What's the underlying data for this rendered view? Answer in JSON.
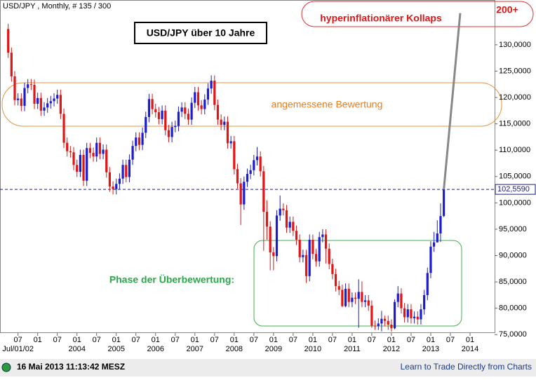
{
  "chart_data": {
    "type": "candlestick",
    "header": "USD/JPY , Monthly, # 135 / 300",
    "title": "USD/JPY über 10 Jahre",
    "annotations": {
      "collapse": "hyperinflationärer Kollaps",
      "target": "200+",
      "fair": "angemessene Bewertung",
      "overvalued": "Phase der Überbewertung:"
    },
    "footer": {
      "timestamp": "16 Mai 2013 11:13:42 MESZ",
      "link": "Learn to Trade Directly from Charts"
    },
    "up_color": "#1c1cd0",
    "down_color": "#e01515",
    "open": [
      133.0,
      128.5,
      124.0,
      119.5,
      119.8,
      118.4,
      121.8,
      122.5,
      122.4,
      118.8,
      119.9,
      117.5,
      118.1,
      118.9,
      119.3,
      119.8,
      120.5,
      116.9,
      111.4,
      109.8,
      109.6,
      107.2,
      105.9,
      109.1,
      104.2,
      110.4,
      109.5,
      108.8,
      111.4,
      109.3,
      110.1,
      105.8,
      103.1,
      102.6,
      103.6,
      104.6,
      107.2,
      104.9,
      108.2,
      110.8,
      112.4,
      111.0,
      113.3,
      116.3,
      119.7,
      117.8,
      117.2,
      115.9,
      117.5,
      113.8,
      112.5,
      114.4,
      114.6,
      117.3,
      118.1,
      116.9,
      115.8,
      119.0,
      121.0,
      118.5,
      117.8,
      119.6,
      121.7,
      123.2,
      118.6,
      115.8,
      114.8,
      115.4,
      111.3,
      111.7,
      106.4,
      103.7,
      99.7,
      104.0,
      105.5,
      106.2,
      108.1,
      108.8,
      106.0,
      98.3,
      95.5,
      90.6,
      89.9,
      97.6,
      98.9,
      98.6,
      95.3,
      96.4,
      94.7,
      93.0,
      89.7,
      90.1,
      86.1,
      93.0,
      90.3,
      88.9,
      93.5,
      94.0,
      91.3,
      88.4,
      86.5,
      84.2,
      83.5,
      80.4,
      83.7,
      81.2,
      82.0,
      81.8,
      83.1,
      81.2,
      81.5,
      80.5,
      76.7,
      76.6,
      77.1,
      78.0,
      77.6,
      76.9,
      76.2,
      81.2,
      82.8,
      80.0,
      78.3,
      79.8,
      78.1,
      78.4,
      77.9,
      79.8,
      82.5,
      86.7,
      91.7,
      92.5,
      94.2,
      97.5
    ],
    "high": [
      134.0,
      129.5,
      125.0,
      120.8,
      120.8,
      122.8,
      123.5,
      123.5,
      123.4,
      120.9,
      120.9,
      119.1,
      119.9,
      120.3,
      120.8,
      121.5,
      121.5,
      117.9,
      112.4,
      110.8,
      110.6,
      108.2,
      110.1,
      110.1,
      111.4,
      111.4,
      110.5,
      112.4,
      112.4,
      111.1,
      111.1,
      106.8,
      104.1,
      104.6,
      105.6,
      108.2,
      108.2,
      109.2,
      111.8,
      113.4,
      113.4,
      114.3,
      117.3,
      120.7,
      120.7,
      118.8,
      118.2,
      118.5,
      118.5,
      114.8,
      115.4,
      115.6,
      118.3,
      119.1,
      119.1,
      117.9,
      120.0,
      122.0,
      122.0,
      119.5,
      120.6,
      122.7,
      124.2,
      124.2,
      119.6,
      116.8,
      116.4,
      116.4,
      112.7,
      112.7,
      107.4,
      104.7,
      105.0,
      106.5,
      107.2,
      109.1,
      110.6,
      109.8,
      107.0,
      100.5,
      96.5,
      91.6,
      98.6,
      101.4,
      99.9,
      99.6,
      97.4,
      97.4,
      95.7,
      94.0,
      91.1,
      91.1,
      94.0,
      94.0,
      91.3,
      94.5,
      95.0,
      95.0,
      92.3,
      89.4,
      87.5,
      85.2,
      84.5,
      84.7,
      84.7,
      83.0,
      83.0,
      85.5,
      85.1,
      82.5,
      82.5,
      81.5,
      77.7,
      78.1,
      79.5,
      78.6,
      78.6,
      77.9,
      81.7,
      84.2,
      83.8,
      81.0,
      80.8,
      80.8,
      79.4,
      79.4,
      80.8,
      83.5,
      87.7,
      92.7,
      94.5,
      96.7,
      99.9,
      103.7
    ],
    "low": [
      127.5,
      123.0,
      118.5,
      118.5,
      117.4,
      117.4,
      120.8,
      121.4,
      117.8,
      117.8,
      116.5,
      116.5,
      117.1,
      117.9,
      118.3,
      118.8,
      115.9,
      110.4,
      108.8,
      108.6,
      106.2,
      104.9,
      104.9,
      103.2,
      103.2,
      108.5,
      107.8,
      107.8,
      108.3,
      108.3,
      104.8,
      102.1,
      101.6,
      101.6,
      102.6,
      103.6,
      103.9,
      103.9,
      107.2,
      109.8,
      110.0,
      110.0,
      112.3,
      115.3,
      116.8,
      116.2,
      114.9,
      114.9,
      112.8,
      111.5,
      111.5,
      113.4,
      113.6,
      116.3,
      115.9,
      114.8,
      114.8,
      118.0,
      117.5,
      116.8,
      116.8,
      118.6,
      120.7,
      117.6,
      114.8,
      113.8,
      113.8,
      110.3,
      110.3,
      105.4,
      102.7,
      95.8,
      98.7,
      103.0,
      104.5,
      105.2,
      107.1,
      105.0,
      90.9,
      93.0,
      87.2,
      87.2,
      88.9,
      96.6,
      97.6,
      94.3,
      94.3,
      93.7,
      92.0,
      88.7,
      88.7,
      84.8,
      85.1,
      89.3,
      87.9,
      87.9,
      92.5,
      88.5,
      87.4,
      85.5,
      83.2,
      82.5,
      80.2,
      80.2,
      80.2,
      80.2,
      80.8,
      76.3,
      80.2,
      80.2,
      79.5,
      76.3,
      75.9,
      75.9,
      75.6,
      76.6,
      75.9,
      75.6,
      76.0,
      80.2,
      79.0,
      77.3,
      77.3,
      77.1,
      77.1,
      76.9,
      76.9,
      78.8,
      81.5,
      85.7,
      90.7,
      92.5,
      92.6,
      97.3
    ],
    "close": [
      128.5,
      124.0,
      119.5,
      119.8,
      118.4,
      121.8,
      122.5,
      122.4,
      118.8,
      119.9,
      117.5,
      118.1,
      118.9,
      119.3,
      119.8,
      120.5,
      116.9,
      111.4,
      109.8,
      109.6,
      107.2,
      105.9,
      109.1,
      104.2,
      110.4,
      109.5,
      108.8,
      111.4,
      109.3,
      110.1,
      105.8,
      103.1,
      102.6,
      103.6,
      104.6,
      107.2,
      104.9,
      108.2,
      110.8,
      112.4,
      111.0,
      113.3,
      116.3,
      119.7,
      117.8,
      117.2,
      115.9,
      117.5,
      113.8,
      112.5,
      114.4,
      114.6,
      117.3,
      118.1,
      116.9,
      115.8,
      119.0,
      121.0,
      118.5,
      117.8,
      119.6,
      121.7,
      123.2,
      118.6,
      115.8,
      114.8,
      115.4,
      111.3,
      111.7,
      106.4,
      103.7,
      99.7,
      104.0,
      105.5,
      106.2,
      108.1,
      108.8,
      106.0,
      98.3,
      95.5,
      90.6,
      89.9,
      97.6,
      98.9,
      98.6,
      95.3,
      96.4,
      94.7,
      93.0,
      89.7,
      90.1,
      86.1,
      93.0,
      90.3,
      88.9,
      93.5,
      94.0,
      91.3,
      88.4,
      86.5,
      84.2,
      83.5,
      80.4,
      83.7,
      81.2,
      82.0,
      81.8,
      83.1,
      81.2,
      81.5,
      80.5,
      76.7,
      76.6,
      77.1,
      78.0,
      77.6,
      76.9,
      76.2,
      81.2,
      82.8,
      80.0,
      78.3,
      79.8,
      78.1,
      78.4,
      77.9,
      79.8,
      82.5,
      86.7,
      91.7,
      92.5,
      94.2,
      97.5,
      102.6
    ],
    "current": {
      "value": 102.559,
      "label": "102,5590"
    },
    "projection": {
      "x": [
        133,
        138
      ],
      "values": [
        102.559,
        136
      ]
    },
    "xlim": [
      -2.5,
      148.5
    ],
    "ylim": [
      75.3,
      138.5
    ],
    "yticks": [
      {
        "value": 75,
        "label": "75,0000"
      },
      {
        "value": 80,
        "label": "80,0000"
      },
      {
        "value": 85,
        "label": "85,0000"
      },
      {
        "value": 90,
        "label": "90,0000"
      },
      {
        "value": 95,
        "label": "95,0000"
      },
      {
        "value": 100,
        "label": "100,0000"
      },
      {
        "value": 105,
        "label": "105,0000"
      },
      {
        "value": 110,
        "label": "110,0000"
      },
      {
        "value": 115,
        "label": "115,0000"
      },
      {
        "value": 120,
        "label": "120,0000"
      },
      {
        "value": 125,
        "label": "125,0000"
      },
      {
        "value": 130,
        "label": "130,0000"
      }
    ],
    "xticks": [
      {
        "value": 3,
        "label": "07"
      },
      {
        "value": 9,
        "label": "01"
      },
      {
        "value": 15,
        "label": "07"
      },
      {
        "value": 21,
        "label": "01"
      },
      {
        "value": 27,
        "label": "07"
      },
      {
        "value": 33,
        "label": "01"
      },
      {
        "value": 39,
        "label": "07"
      },
      {
        "value": 45,
        "label": "01"
      },
      {
        "value": 51,
        "label": "07"
      },
      {
        "value": 57,
        "label": "01"
      },
      {
        "value": 63,
        "label": "07"
      },
      {
        "value": 69,
        "label": "01"
      },
      {
        "value": 75,
        "label": "07"
      },
      {
        "value": 81,
        "label": "01"
      },
      {
        "value": 87,
        "label": "07"
      },
      {
        "value": 93,
        "label": "01"
      },
      {
        "value": 99,
        "label": "07"
      },
      {
        "value": 105,
        "label": "01"
      },
      {
        "value": 111,
        "label": "07"
      },
      {
        "value": 117,
        "label": "01"
      },
      {
        "value": 123,
        "label": "07"
      },
      {
        "value": 129,
        "label": "01"
      },
      {
        "value": 135,
        "label": "07"
      },
      {
        "value": 141,
        "label": "01"
      }
    ],
    "xticks_years": [
      {
        "value": 3,
        "label": "Jul/01/02"
      },
      {
        "value": 21,
        "label": "2004"
      },
      {
        "value": 33,
        "label": "2005"
      },
      {
        "value": 45,
        "label": "2006"
      },
      {
        "value": 57,
        "label": "2007"
      },
      {
        "value": 69,
        "label": "2008"
      },
      {
        "value": 81,
        "label": "2009"
      },
      {
        "value": 93,
        "label": "2010"
      },
      {
        "value": 105,
        "label": "2011"
      },
      {
        "value": 117,
        "label": "2012"
      },
      {
        "value": 129,
        "label": "2013"
      },
      {
        "value": 141,
        "label": "2014"
      }
    ]
  }
}
